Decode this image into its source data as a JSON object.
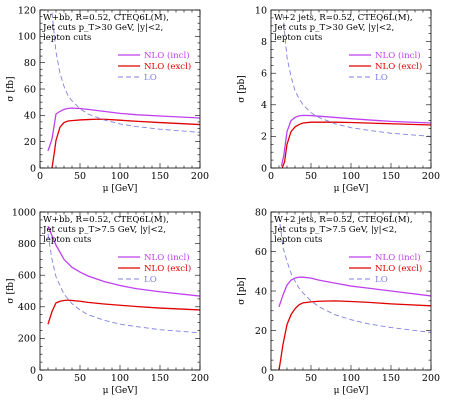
{
  "chart_data": [
    {
      "type": "line",
      "annotation": [
        "W+bb, R=0.52, CTEQ6L(M),",
        "Jet cuts p_T>30 GeV, |y|<2,",
        "lepton cuts"
      ],
      "xlabel": "μ [GeV]",
      "ylabel": "σ [fb]",
      "xlim": [
        0,
        200
      ],
      "ylim": [
        0,
        120
      ],
      "xticks": [
        0,
        50,
        100,
        150,
        200
      ],
      "yticks": [
        0,
        20,
        40,
        60,
        80,
        100,
        120
      ],
      "legend_position": "right",
      "series": [
        {
          "name": "NLO (incl)",
          "color": "#c040f0",
          "style": "solid",
          "x": [
            10,
            15,
            20,
            25,
            30,
            35,
            40,
            50,
            60,
            80,
            100,
            120,
            150,
            200
          ],
          "y": [
            13,
            22,
            41,
            43,
            44.5,
            45.3,
            45.5,
            45.2,
            44.5,
            43,
            41.5,
            40.5,
            39.5,
            38
          ]
        },
        {
          "name": "NLO (excl)",
          "color": "#e00000",
          "style": "solid",
          "x": [
            15,
            18,
            20,
            25,
            30,
            35,
            40,
            50,
            60,
            70,
            80,
            100,
            120,
            150,
            200
          ],
          "y": [
            0,
            12,
            21,
            31,
            34.5,
            35.7,
            36,
            36.5,
            36.8,
            37,
            37,
            36.3,
            35.5,
            34.5,
            33
          ]
        },
        {
          "name": "LO",
          "color": "#8080e0",
          "style": "dashed",
          "x": [
            15,
            20,
            25,
            30,
            35,
            40,
            50,
            60,
            80,
            100,
            120,
            150,
            200
          ],
          "y": [
            118,
            88,
            72,
            62,
            55,
            51,
            45,
            41,
            36.5,
            33.5,
            31.5,
            29.5,
            27
          ]
        }
      ]
    },
    {
      "type": "line",
      "annotation": [
        "W+2 jets, R=0.52, CTEQ6L(M),",
        "Jet cuts p_T>30 GeV, |y|<2,",
        "lepton cuts"
      ],
      "xlabel": "μ [GeV]",
      "ylabel": "σ [pb]",
      "xlim": [
        0,
        200
      ],
      "ylim": [
        0,
        10
      ],
      "xticks": [
        0,
        50,
        100,
        150,
        200
      ],
      "yticks": [
        0,
        2,
        4,
        6,
        8,
        10
      ],
      "legend_position": "right",
      "series": [
        {
          "name": "NLO (incl)",
          "color": "#c040f0",
          "style": "solid",
          "x": [
            13,
            16,
            20,
            25,
            30,
            35,
            40,
            50,
            60,
            80,
            100,
            120,
            150,
            200
          ],
          "y": [
            0.1,
            0.8,
            2.3,
            3.0,
            3.2,
            3.3,
            3.33,
            3.32,
            3.28,
            3.2,
            3.12,
            3.05,
            2.95,
            2.85
          ]
        },
        {
          "name": "NLO (excl)",
          "color": "#e00000",
          "style": "solid",
          "x": [
            14,
            17,
            20,
            25,
            30,
            35,
            40,
            50,
            60,
            80,
            100,
            120,
            150,
            200
          ],
          "y": [
            0,
            0.4,
            1.5,
            2.3,
            2.6,
            2.75,
            2.85,
            2.9,
            2.9,
            2.9,
            2.88,
            2.85,
            2.8,
            2.72
          ]
        },
        {
          "name": "LO",
          "color": "#8080e0",
          "style": "dashed",
          "x": [
            15,
            20,
            25,
            30,
            35,
            40,
            50,
            60,
            80,
            100,
            120,
            150,
            200
          ],
          "y": [
            9.7,
            7.0,
            5.8,
            4.9,
            4.4,
            4.0,
            3.5,
            3.2,
            2.8,
            2.55,
            2.4,
            2.2,
            2.0
          ]
        }
      ]
    },
    {
      "type": "line",
      "annotation": [
        "W+bb, R=0.52, CTEQ6L(M),",
        "Jet cuts p_T>7.5 GeV, |y|<2,",
        "lepton cuts"
      ],
      "xlabel": "μ [GeV]",
      "ylabel": "σ [fb]",
      "xlim": [
        0,
        200
      ],
      "ylim": [
        0,
        1000
      ],
      "xticks": [
        0,
        50,
        100,
        150,
        200
      ],
      "yticks": [
        0,
        200,
        400,
        600,
        800,
        1000
      ],
      "legend_position": "right",
      "series": [
        {
          "name": "NLO (incl)",
          "color": "#c040f0",
          "style": "solid",
          "x": [
            10,
            15,
            20,
            30,
            40,
            50,
            60,
            80,
            100,
            120,
            150,
            200
          ],
          "y": [
            910,
            850,
            790,
            700,
            650,
            620,
            595,
            560,
            535,
            515,
            495,
            468
          ]
        },
        {
          "name": "NLO (excl)",
          "color": "#e00000",
          "style": "solid",
          "x": [
            10,
            15,
            20,
            25,
            30,
            35,
            40,
            50,
            60,
            80,
            100,
            120,
            150,
            200
          ],
          "y": [
            290,
            370,
            425,
            435,
            440,
            442,
            440,
            435,
            428,
            418,
            410,
            402,
            392,
            380
          ]
        },
        {
          "name": "LO",
          "color": "#8080e0",
          "style": "dashed",
          "x": [
            10,
            15,
            20,
            30,
            40,
            50,
            60,
            80,
            100,
            120,
            150,
            200
          ],
          "y": [
            860,
            700,
            590,
            480,
            420,
            380,
            350,
            315,
            290,
            275,
            255,
            235
          ]
        }
      ]
    },
    {
      "type": "line",
      "annotation": [
        "W+2 jets, R=0.52, CTEQ6L(M),",
        "Jet cuts p_T>7.5 GeV, |y|<2,",
        "lepton cuts"
      ],
      "xlabel": "μ [GeV]",
      "ylabel": "σ [pb]",
      "xlim": [
        0,
        200
      ],
      "ylim": [
        0,
        80
      ],
      "xticks": [
        0,
        50,
        100,
        150,
        200
      ],
      "yticks": [
        0,
        20,
        40,
        60,
        80
      ],
      "legend_position": "right",
      "series": [
        {
          "name": "NLO (incl)",
          "color": "#c040f0",
          "style": "solid",
          "x": [
            10,
            15,
            20,
            25,
            30,
            35,
            40,
            50,
            60,
            80,
            100,
            120,
            150,
            200
          ],
          "y": [
            32,
            38,
            43,
            45.5,
            46.5,
            47,
            47,
            46.5,
            45.5,
            44,
            42.5,
            41.5,
            40,
            37.5
          ]
        },
        {
          "name": "NLO (excl)",
          "color": "#e00000",
          "style": "solid",
          "x": [
            10,
            12,
            15,
            20,
            25,
            30,
            35,
            40,
            50,
            60,
            80,
            100,
            120,
            150,
            200
          ],
          "y": [
            0,
            5,
            13,
            23,
            28,
            31,
            33,
            34,
            34.5,
            34.8,
            35,
            34.7,
            34.3,
            33.5,
            32.5
          ]
        },
        {
          "name": "LO",
          "color": "#8080e0",
          "style": "dashed",
          "x": [
            10,
            15,
            20,
            25,
            30,
            35,
            40,
            50,
            60,
            80,
            100,
            120,
            150,
            200
          ],
          "y": [
            78,
            62,
            55,
            49,
            45,
            41.5,
            39,
            35,
            32,
            28,
            25.5,
            23.5,
            21.5,
            19
          ]
        }
      ]
    }
  ]
}
